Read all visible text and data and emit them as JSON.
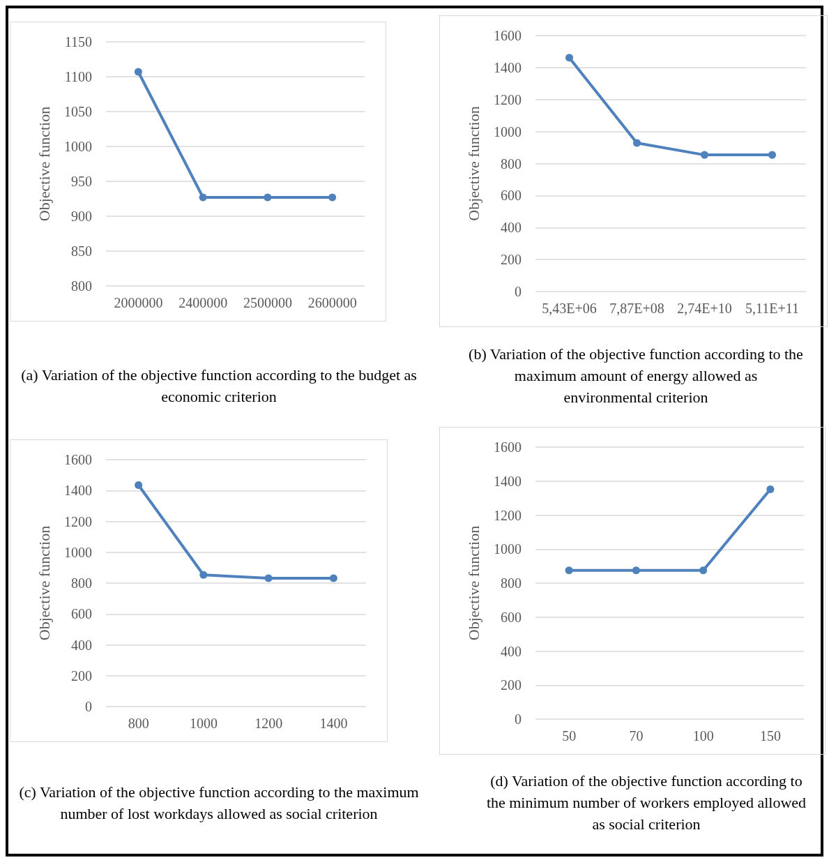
{
  "chart_data": [
    {
      "type": "line",
      "ylabel": "Objective function",
      "categories": [
        "2000000",
        "2400000",
        "2500000",
        "2600000"
      ],
      "series": [
        {
          "color": "#4f81bd",
          "values": [
            1107,
            927,
            927,
            927
          ]
        }
      ],
      "ylim": [
        800,
        1150
      ],
      "yticks": [
        800,
        850,
        900,
        950,
        1000,
        1050,
        1100,
        1150
      ],
      "grid": "y",
      "marker": "circle",
      "line_style": "solid",
      "annotations": [
        "(a)     Variation of the objective function according to the budget as economic criterion"
      ]
    },
    {
      "type": "line",
      "ylabel": "Objective function",
      "categories": [
        "5,43E+06",
        "7,87E+08",
        "2,74E+10",
        "5,11E+11"
      ],
      "series": [
        {
          "color": "#4f81bd",
          "values": [
            1462,
            929,
            854,
            854
          ]
        }
      ],
      "ylim": [
        0,
        1600
      ],
      "yticks": [
        0,
        200,
        400,
        600,
        800,
        1000,
        1200,
        1400,
        1600
      ],
      "grid": "y",
      "marker": "circle",
      "line_style": "solid",
      "annotations": [
        "(b)  Variation of the objective function according to the maximum amount of energy allowed as environmental criterion"
      ]
    },
    {
      "type": "line",
      "ylabel": "Objective function",
      "categories": [
        "800",
        "1000",
        "1200",
        "1400"
      ],
      "series": [
        {
          "color": "#4f81bd",
          "values": [
            1435,
            853,
            832,
            832
          ]
        }
      ],
      "ylim": [
        0,
        1600
      ],
      "yticks": [
        0,
        200,
        400,
        600,
        800,
        1000,
        1200,
        1400,
        1600
      ],
      "grid": "y",
      "marker": "circle",
      "line_style": "solid",
      "annotations": [
        "(c)   Variation of the objective function according to the maximum number of lost workdays allowed as social criterion"
      ]
    },
    {
      "type": "line",
      "ylabel": "Objective function",
      "categories": [
        "50",
        "70",
        "100",
        "150"
      ],
      "series": [
        {
          "color": "#4f81bd",
          "values": [
            875,
            875,
            875,
            1352
          ]
        }
      ],
      "ylim": [
        0,
        1600
      ],
      "yticks": [
        0,
        200,
        400,
        600,
        800,
        1000,
        1200,
        1400,
        1600
      ],
      "grid": "y",
      "marker": "circle",
      "line_style": "solid",
      "annotations": [
        "(d)  Variation of the objective function according to the minimum number of workers employed allowed as social criterion"
      ]
    }
  ]
}
